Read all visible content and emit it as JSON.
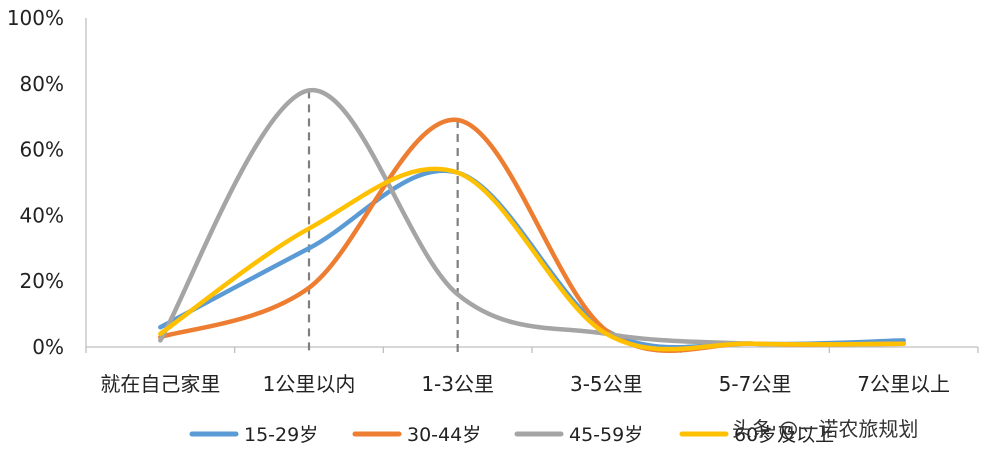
{
  "chart_data": {
    "type": "line",
    "title": "",
    "xlabel": "",
    "ylabel": "",
    "categories": [
      "就在自己家里",
      "1公里以内",
      "1-3公里",
      "3-5公里",
      "5-7公里",
      "7公里以上"
    ],
    "ylim": [
      0,
      100
    ],
    "yticks": [
      "0%",
      "20%",
      "40%",
      "60%",
      "80%",
      "100%"
    ],
    "series": [
      {
        "name": "15-29岁",
        "color": "#5B9BD5",
        "values": [
          6,
          30,
          53,
          5,
          1,
          2
        ]
      },
      {
        "name": "30-44岁",
        "color": "#ED7D31",
        "values": [
          3,
          18,
          69,
          5,
          1,
          1
        ]
      },
      {
        "name": "45-59岁",
        "color": "#A5A5A5",
        "values": [
          2,
          78,
          16,
          4,
          1,
          1
        ]
      },
      {
        "name": "60岁及以上",
        "color": "#FFC000",
        "values": [
          4,
          36,
          53,
          4,
          1,
          1
        ]
      }
    ],
    "reference_lines_at": [
      "1公里以内",
      "1-3公里"
    ],
    "grid": false,
    "legend": "bottom"
  },
  "watermark": "头条 @一诺农旅规划"
}
